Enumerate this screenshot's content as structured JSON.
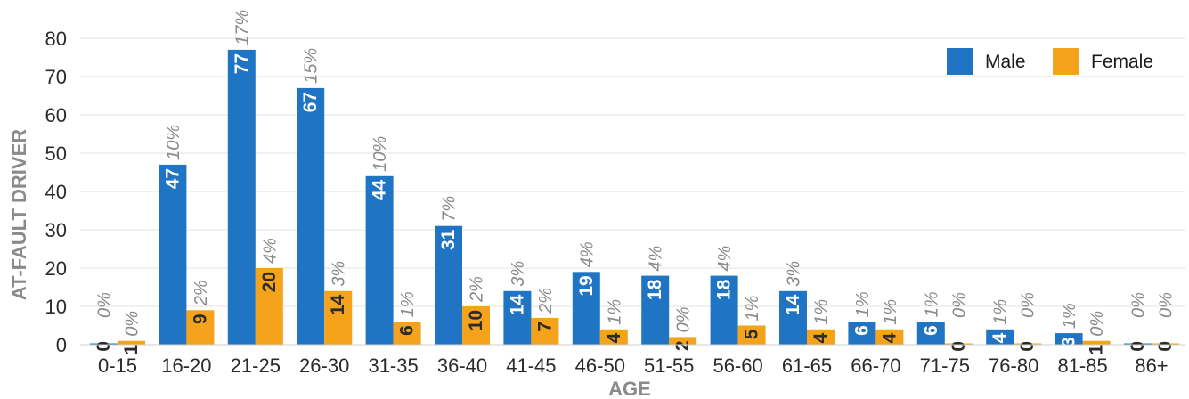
{
  "chart_data": {
    "type": "bar",
    "xlabel": "AGE",
    "ylabel": "AT-FAULT DRIVER",
    "ylim": [
      0,
      80
    ],
    "yticks": [
      0,
      10,
      20,
      30,
      40,
      50,
      60,
      70,
      80
    ],
    "grid": true,
    "legend_position": "top-right",
    "categories": [
      "0-15",
      "16-20",
      "21-25",
      "26-30",
      "31-35",
      "36-40",
      "41-45",
      "46-50",
      "51-55",
      "56-60",
      "61-65",
      "66-70",
      "71-75",
      "76-80",
      "81-85",
      "86+"
    ],
    "series": [
      {
        "name": "Male",
        "color": "#1f74c4",
        "label_color": "#ffffff",
        "values": [
          0,
          47,
          77,
          67,
          44,
          31,
          14,
          19,
          18,
          18,
          14,
          6,
          6,
          4,
          3,
          0
        ],
        "percent_labels": [
          "0%",
          "10%",
          "17%",
          "15%",
          "10%",
          "7%",
          "3%",
          "4%",
          "4%",
          "4%",
          "3%",
          "1%",
          "1%",
          "1%",
          "1%",
          "0%"
        ]
      },
      {
        "name": "Female",
        "color": "#f5a31a",
        "label_color": "#2b2b2b",
        "values": [
          1,
          9,
          20,
          14,
          6,
          10,
          7,
          4,
          2,
          5,
          4,
          4,
          0,
          0,
          1,
          0
        ],
        "percent_labels": [
          "0%",
          "2%",
          "4%",
          "3%",
          "1%",
          "2%",
          "2%",
          "1%",
          "0%",
          "1%",
          "1%",
          "1%",
          "0%",
          "0%",
          "0%",
          "0%"
        ]
      }
    ]
  }
}
